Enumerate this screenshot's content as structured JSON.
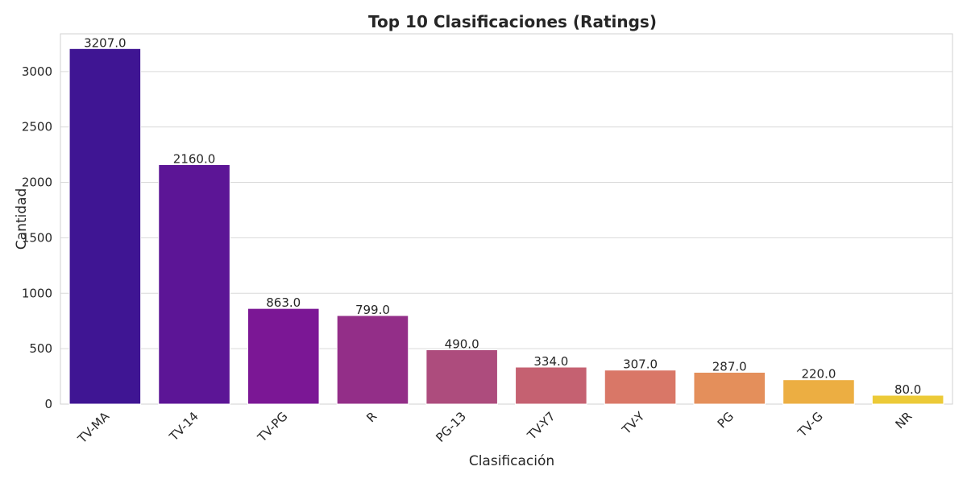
{
  "chart_data": {
    "type": "bar",
    "title": "Top 10 Clasificaciones (Ratings)",
    "xlabel": "Clasificación",
    "ylabel": "Cantidad",
    "categories": [
      "TV-MA",
      "TV-14",
      "TV-PG",
      "R",
      "PG-13",
      "TV-Y7",
      "TV-Y",
      "PG",
      "TV-G",
      "NR"
    ],
    "values": [
      3207,
      2160,
      863,
      799,
      490,
      334,
      307,
      287,
      220,
      80
    ],
    "data_labels": [
      "3207.0",
      "2160.0",
      "863.0",
      "799.0",
      "490.0",
      "334.0",
      "307.0",
      "287.0",
      "220.0",
      "80.0"
    ],
    "ylim": [
      0,
      3340
    ],
    "yticks": [
      0,
      500,
      1000,
      1500,
      2000,
      2500,
      3000
    ],
    "grid": true,
    "colors": [
      "#3f1593",
      "#5c1596",
      "#7b1795",
      "#932e88",
      "#ad4c7d",
      "#c56171",
      "#d97767",
      "#e48f5b",
      "#ecae42",
      "#ecca37"
    ]
  }
}
